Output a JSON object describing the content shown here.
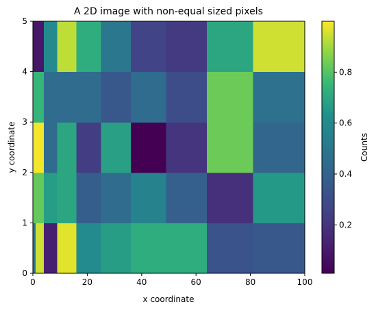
{
  "chart_data": {
    "type": "heatmap",
    "title": "A 2D image with non-equal sized pixels",
    "xlabel": "x coordinate",
    "ylabel": "y coordinate",
    "colorbar_label": "Counts",
    "colormap": "viridis",
    "xlim": [
      0,
      100
    ],
    "ylim": [
      0,
      5
    ],
    "clim": [
      0.01,
      1.0
    ],
    "x_edges": [
      0,
      1,
      4,
      9,
      16,
      25,
      36,
      49,
      64,
      81,
      100
    ],
    "y_edges": [
      0,
      1,
      2,
      3,
      4,
      5
    ],
    "values": [
      [
        0.5,
        0.95,
        0.12,
        0.97,
        0.6,
        0.67,
        0.72,
        0.72,
        0.33,
        0.35
      ],
      [
        0.82,
        0.82,
        0.67,
        0.7,
        0.38,
        0.45,
        0.56,
        0.39,
        0.18,
        0.66
      ],
      [
        0.99,
        0.99,
        0.45,
        0.7,
        0.23,
        0.68,
        0.01,
        0.2,
        0.83,
        0.42
      ],
      [
        0.75,
        0.75,
        0.45,
        0.45,
        0.45,
        0.35,
        0.45,
        0.3,
        0.83,
        0.47
      ],
      [
        0.09,
        0.09,
        0.6,
        0.93,
        0.72,
        0.5,
        0.26,
        0.22,
        0.7,
        0.95
      ]
    ],
    "xticks": [
      0,
      20,
      40,
      60,
      80,
      100
    ],
    "xtick_labels": [
      "0",
      "20",
      "40",
      "60",
      "80",
      "100"
    ],
    "yticks": [
      0,
      1,
      2,
      3,
      4,
      5
    ],
    "ytick_labels": [
      "0",
      "1",
      "2",
      "3",
      "4",
      "5"
    ],
    "cbar_ticks": [
      0.2,
      0.4,
      0.6,
      0.8
    ],
    "cbar_tick_labels": [
      "0.2",
      "0.4",
      "0.6",
      "0.8"
    ]
  }
}
